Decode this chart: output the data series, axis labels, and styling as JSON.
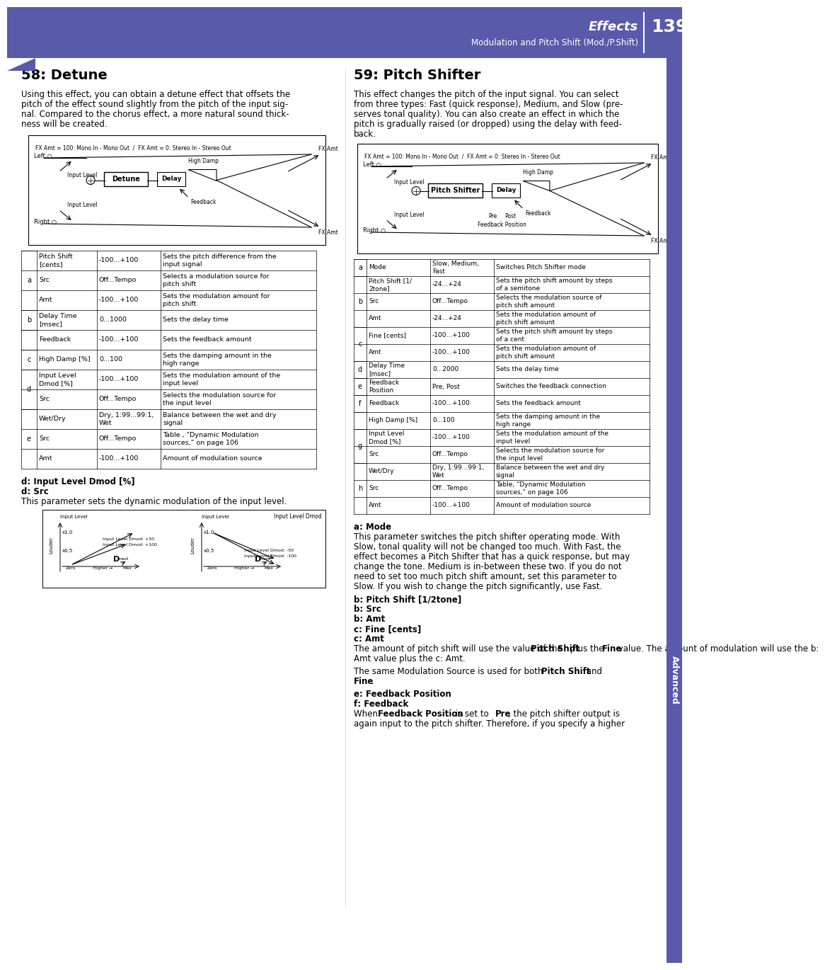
{
  "header_color": "#5a5aaa",
  "header_text_color": "#ffffff",
  "page_number": "139",
  "header_title": "Effects",
  "header_subtitle": "Modulation and Pitch Shift (Mod./P.Shift)",
  "section58_title": "58: Detune",
  "section58_intro": "Using this effect, you can obtain a detune effect that offsets the pitch of the effect sound slightly from the pitch of the input signal. Compared to the chorus effect, a more natural sound thickness will be created.",
  "section59_title": "59: Pitch Shifter",
  "section59_intro": "This effect changes the pitch of the input signal. You can select from three types: Fast (quick response), Medium, and Slow (preserves tonal quality). You can also create an effect in which the pitch is gradually raised (or dropped) using the delay with feedback.",
  "table58_rows": [
    [
      "a",
      "Pitch Shift\n[cents]",
      "-100...+100",
      "Sets the pitch difference from the\ninput signal"
    ],
    [
      "a",
      "Src",
      "Off...Tempo",
      "Selects a modulation source for\npitch shift"
    ],
    [
      "a",
      "Amt",
      "-100...+100",
      "Sets the modulation amount for\npitch shift"
    ],
    [
      "b",
      "Delay Time\n[msec]",
      "0...1000",
      "Sets the delay time"
    ],
    [
      "",
      "Feedback",
      "-100...+100",
      "Sets the feedback amount"
    ],
    [
      "c",
      "High Damp [%]",
      "0...100",
      "Sets the damping amount in the\nhigh range"
    ],
    [
      "d",
      "Input Level\nDmod [%]",
      "-100...+100",
      "Sets the modulation amount of the\ninput level"
    ],
    [
      "d",
      "Src",
      "Off...Tempo",
      "Selects the modulation source for\nthe input level"
    ],
    [
      "e",
      "Wet/Dry",
      "Dry, 1:99...99:1,\nWet",
      "Balance between the wet and dry\nsignal"
    ],
    [
      "e",
      "Src",
      "Off...Tempo",
      "Table , “Dynamic Modulation\nsources,” on page 106"
    ],
    [
      "e",
      "Amt",
      "-100...+100",
      "Amount of modulation source"
    ]
  ],
  "table59_rows": [
    [
      "a",
      "Mode",
      "Slow, Medium,\nFast",
      "Switches Pitch Shifter mode"
    ],
    [
      "b",
      "Pitch Shift [1/\n2tone]",
      "-24...+24",
      "Sets the pitch shift amount by steps\nof a semitone"
    ],
    [
      "b",
      "Src",
      "Off...Tempo",
      "Selects the modulation source of\npitch shift amount"
    ],
    [
      "b",
      "Amt",
      "-24...+24",
      "Sets the modulation amount of\npitch shift amount"
    ],
    [
      "c",
      "Fine [cents]",
      "-100...+100",
      "Sets the pitch shift amount by steps\nof a cent"
    ],
    [
      "c",
      "Amt",
      "-100...+100",
      "Sets the modulation amount of\npitch shift amount"
    ],
    [
      "d",
      "Delay Time\n[msec]",
      "0...2000",
      "Sets the delay time"
    ],
    [
      "e",
      "Feedback\nPosition",
      "Pre, Post",
      "Switches the feedback connection"
    ],
    [
      "f",
      "Feedback",
      "-100...+100",
      "Sets the feedback amount"
    ],
    [
      "",
      "High Damp [%]",
      "0...100",
      "Sets the damping amount in the\nhigh range"
    ],
    [
      "g",
      "Input Level\nDmod [%]",
      "-100...+100",
      "Sets the modulation amount of the\ninput level"
    ],
    [
      "g",
      "Src",
      "Off...Tempo",
      "Selects the modulation source for\nthe input level"
    ],
    [
      "h",
      "Wet/Dry",
      "Dry, 1:99...99:1,\nWet",
      "Balance between the wet and dry\nsignal"
    ],
    [
      "h",
      "Src",
      "Off...Tempo",
      "Table, “Dynamic Modulation\nsources,” on page 106"
    ],
    [
      "h",
      "Amt",
      "-100...+100",
      "Amount of modulation source"
    ]
  ],
  "subsection_d_title1": "d: Input Level Dmod [%]",
  "subsection_d_title2": "d: Src",
  "subsection_d_text": "This parameter sets the dynamic modulation of the input level.",
  "subsection_a_title": "a: Mode",
  "subsection_a_text": "This parameter switches the pitch shifter operating mode. With Slow, tonal quality will not be changed too much. With Fast, the effect becomes a Pitch Shifter that has a quick response, but may change the tone. Medium is in-between these two. If you do not need to set too much pitch shift amount, set this parameter to Slow. If you wish to change the pitch significantly, use Fast.",
  "subsection_b_titles": [
    "b: Pitch Shift [1/2tone]",
    "b: Src",
    "b: Amt",
    "c: Fine [cents]",
    "c: Amt"
  ],
  "subsection_bc_text": "The amount of pitch shift will use the value of the Pitch Shift plus the Fine value. The amount of modulation will use the b: Amt value plus the c: Amt.",
  "subsection_bc_text2": "The same Modulation Source is used for both Pitch Shift and Fine.",
  "subsection_ef_titles": [
    "e: Feedback Position",
    "f: Feedback"
  ],
  "subsection_ef_text": "When Feedback Position is set to Pre, the pitch shifter output is again input to the pitch shifter. Therefore, if you specify a higher",
  "bg_color": "#ffffff",
  "text_color": "#000000",
  "table_line_color": "#000000",
  "sidebar_color": "#5a5aaa"
}
